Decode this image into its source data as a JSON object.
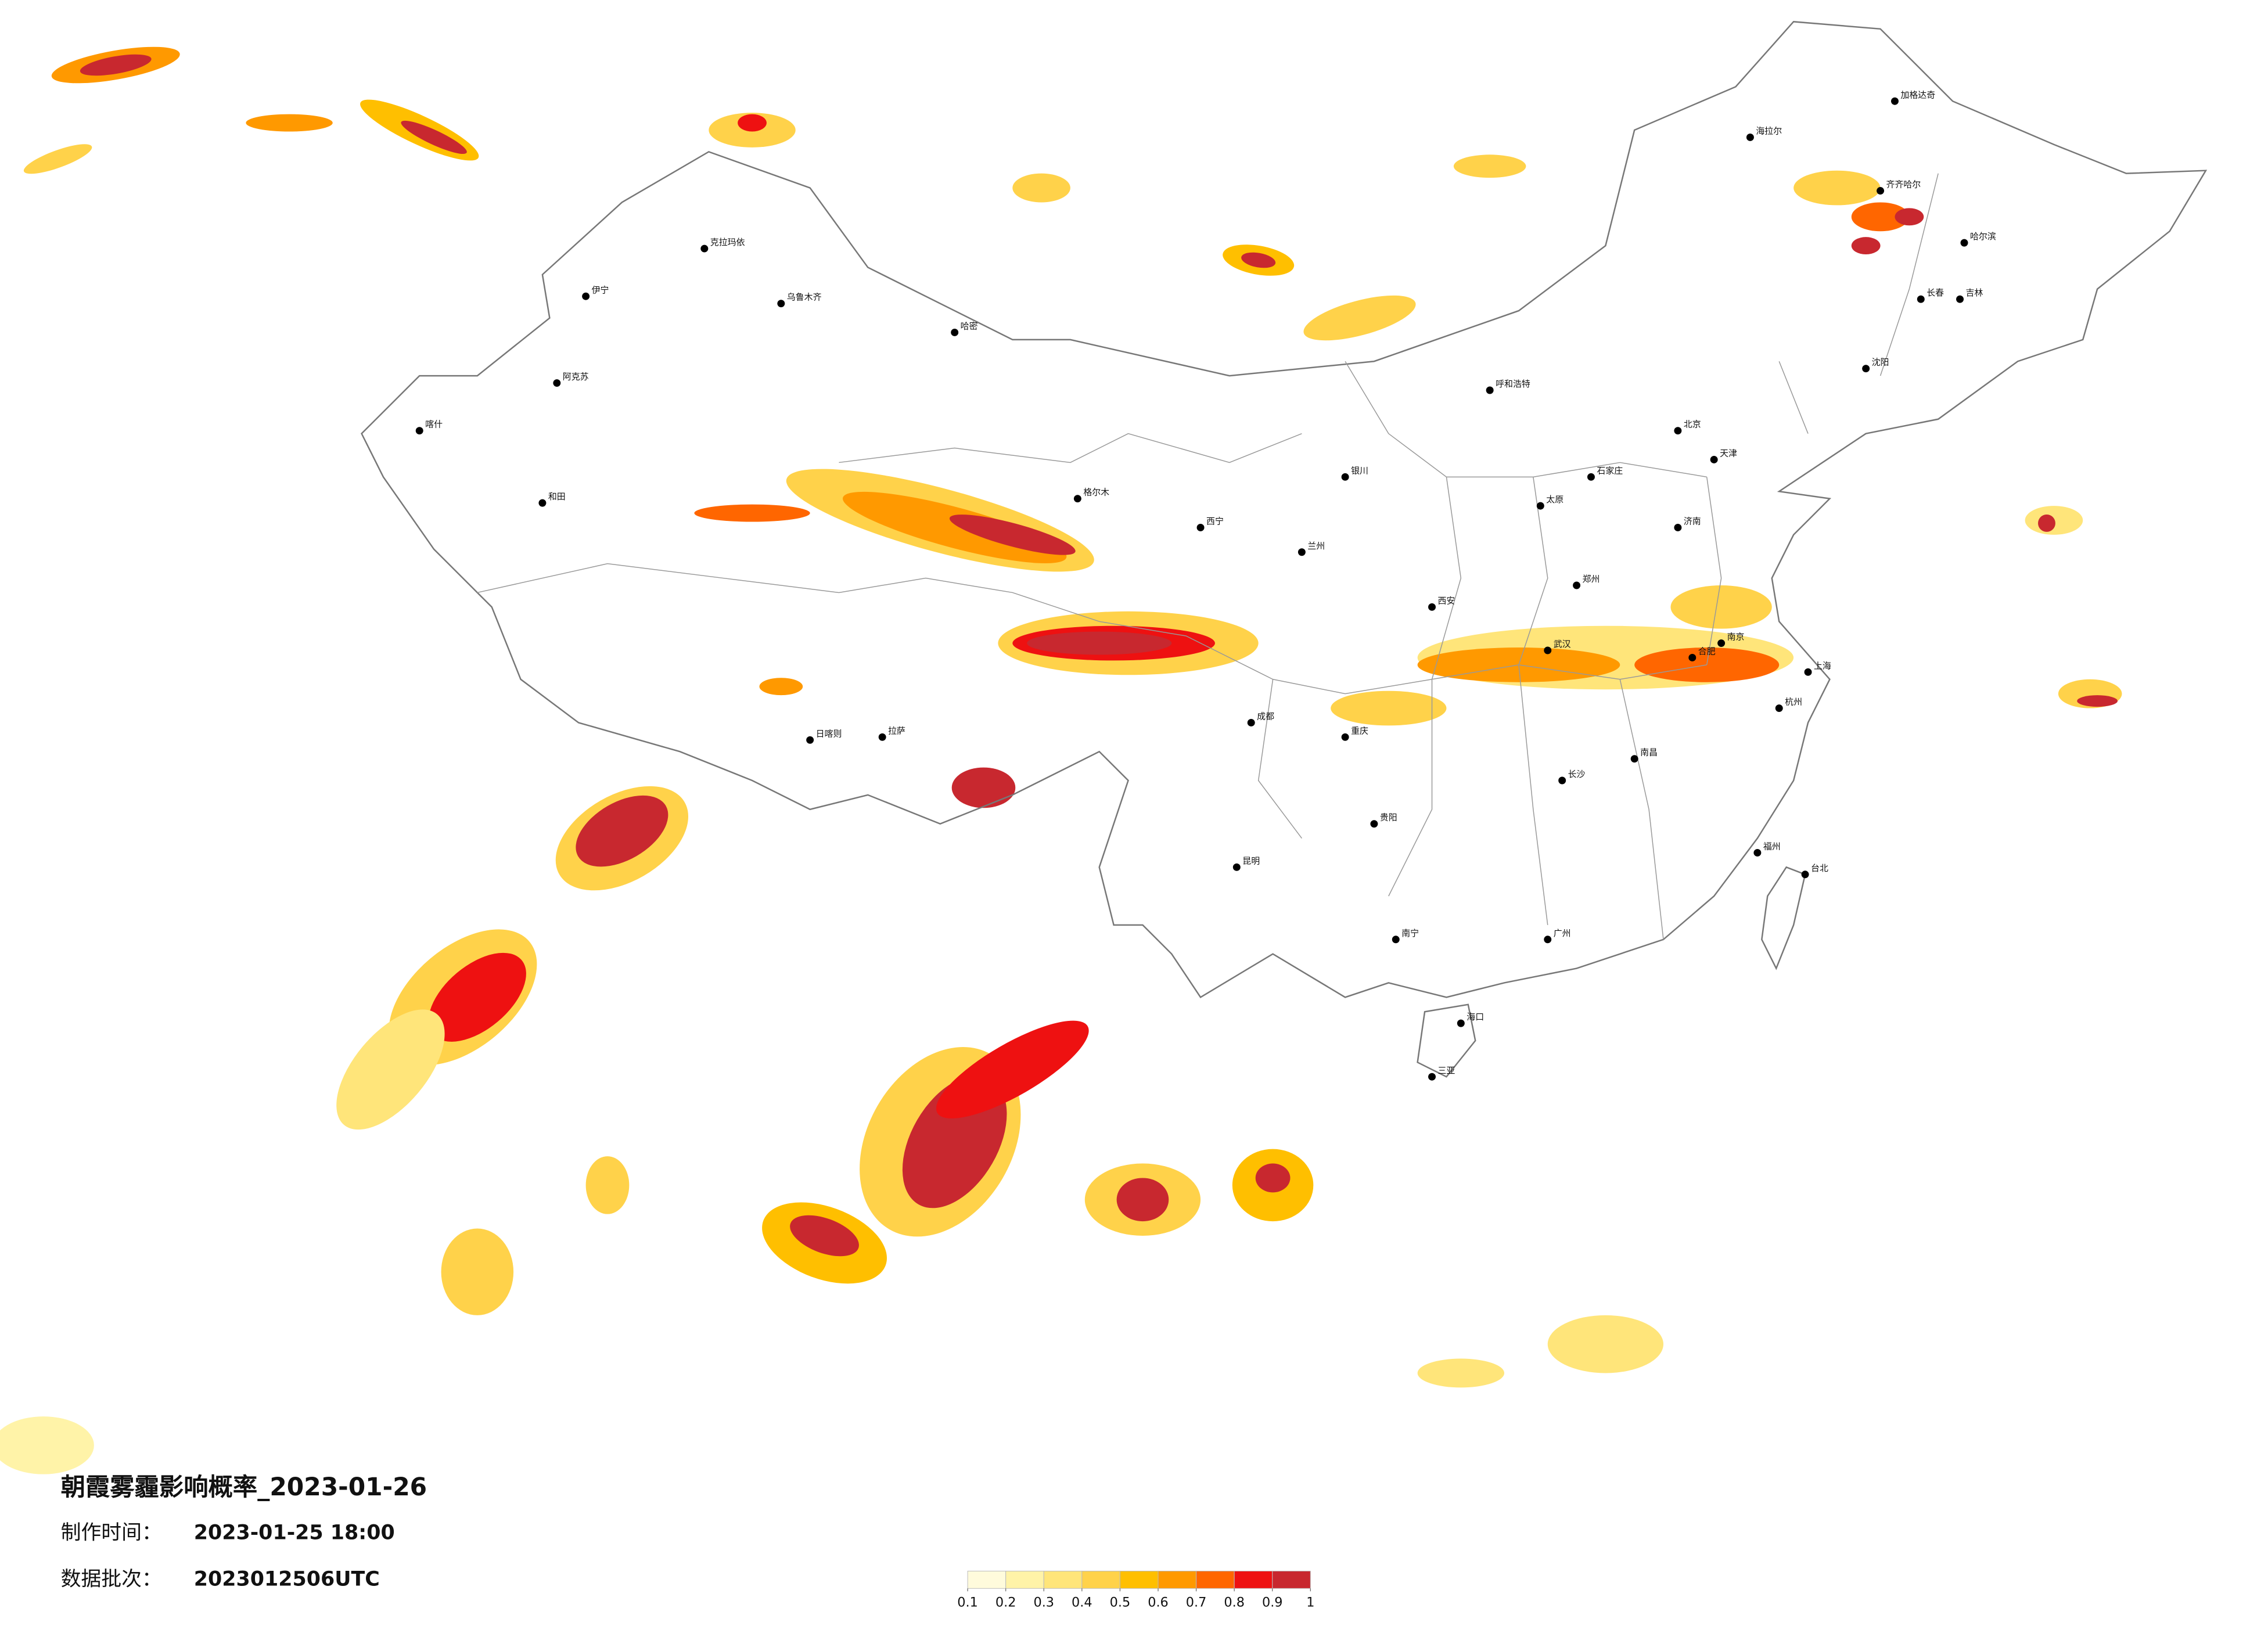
{
  "title": "朝霞雾霾影响概率_2023-01-26",
  "production_time": {
    "label": "制作时间：",
    "value": "2023-01-25 18:00"
  },
  "data_batch": {
    "label": "数据批次：",
    "value": "2023012506UTC"
  },
  "legend": {
    "ticks": [
      0.1,
      0.2,
      0.3,
      0.4,
      0.5,
      0.6,
      0.7,
      0.8,
      0.9,
      1
    ],
    "colors": [
      "#fffbdc",
      "#fff3a8",
      "#ffe57a",
      "#ffd24a",
      "#ffbf00",
      "#ff9900",
      "#ff6600",
      "#ee1111",
      "#c8282f"
    ]
  },
  "cities": [
    "加格达奇",
    "海拉尔",
    "齐齐哈尔",
    "哈尔滨",
    "长春",
    "吉林",
    "沈阳",
    "克拉玛依",
    "乌鲁木齐",
    "伊宁",
    "阿克苏",
    "喀什",
    "和田",
    "哈密",
    "格尔木",
    "拉萨",
    "日喀则",
    "西宁",
    "兰州",
    "银川",
    "呼和浩特",
    "太原",
    "石家庄",
    "北京",
    "天津",
    "济南",
    "郑州",
    "西安",
    "成都",
    "重庆",
    "武汉",
    "长沙",
    "南昌",
    "合肥",
    "南京",
    "上海",
    "杭州",
    "福州",
    "台北",
    "广州",
    "南宁",
    "贵阳",
    "昆明",
    "海口",
    "三亚"
  ]
}
